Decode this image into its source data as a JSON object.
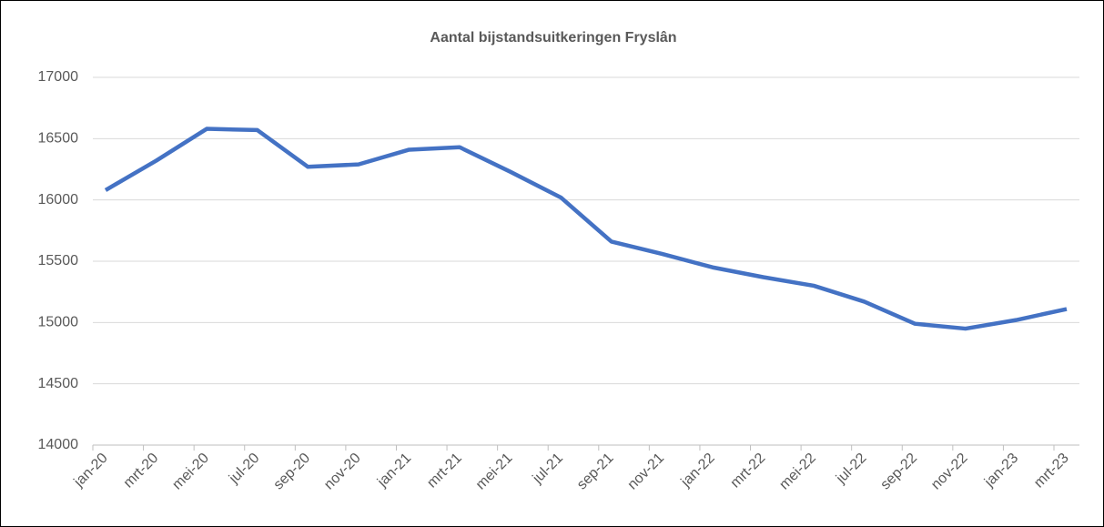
{
  "chart_data": {
    "type": "line",
    "title": "Aantal bijstandsuitkeringen Fryslân",
    "categories": [
      "jan-20",
      "mrt-20",
      "mei-20",
      "jul-20",
      "sep-20",
      "nov-20",
      "jan-21",
      "mrt-21",
      "mei-21",
      "jul-21",
      "sep-21",
      "nov-21",
      "jan-22",
      "mrt-22",
      "mei-22",
      "jul-22",
      "sep-22",
      "nov-22",
      "jan-23",
      "mrt-23"
    ],
    "series": [
      {
        "name": "Aantal bijstandsuitkeringen",
        "color": "#4472c4",
        "values": [
          16080,
          16320,
          16580,
          16570,
          16270,
          16290,
          16410,
          16430,
          16230,
          16020,
          15660,
          15560,
          15450,
          15370,
          15300,
          15170,
          14990,
          14950,
          15020,
          15110
        ]
      }
    ],
    "ylim": [
      14000,
      17000
    ],
    "yticks": [
      14000,
      14500,
      15000,
      15500,
      16000,
      16500,
      17000
    ],
    "grid": true
  }
}
